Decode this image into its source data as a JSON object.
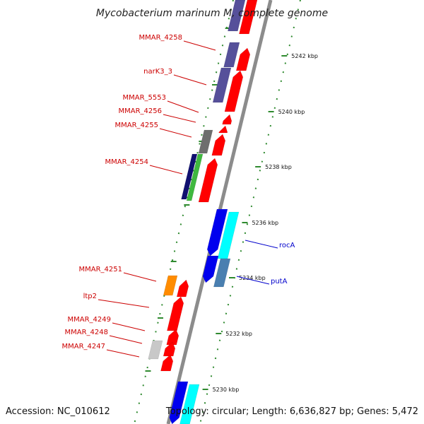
{
  "title": "Mycobacterium marinum M, complete genome",
  "footer": {
    "accession": "Accession: NC_010612",
    "summary": "Topology: circular; Length: 6,636,827 bp; Genes: 5,472"
  },
  "colors": {
    "backbone": "#8c8c8c",
    "tick": "#2f8a2f",
    "label_red": "#cc0000",
    "label_blue": "#0000cc"
  },
  "scale_labels": [
    "5242 kbp",
    "5240 kbp",
    "5238 kbp",
    "5236 kbp",
    "5234 kbp",
    "5232 kbp",
    "5230 kbp"
  ],
  "gene_labels": [
    {
      "text": "MMAR_4258",
      "color": "red"
    },
    {
      "text": "narK3_3",
      "color": "red"
    },
    {
      "text": "MMAR_5553",
      "color": "red"
    },
    {
      "text": "MMAR_4256",
      "color": "red"
    },
    {
      "text": "MMAR_4255",
      "color": "red"
    },
    {
      "text": "MMAR_4254",
      "color": "red"
    },
    {
      "text": "rocA",
      "color": "blue"
    },
    {
      "text": "putA",
      "color": "blue"
    },
    {
      "text": "MMAR_4251",
      "color": "red"
    },
    {
      "text": "ltp2",
      "color": "red"
    },
    {
      "text": "MMAR_4249",
      "color": "red"
    },
    {
      "text": "MMAR_4248",
      "color": "red"
    },
    {
      "text": "MMAR_4247",
      "color": "red"
    }
  ],
  "features": [
    {
      "name": "MMAR_4258-forward",
      "color": "#ff0000"
    },
    {
      "name": "MMAR_4258-cog",
      "color": "#56509a"
    },
    {
      "name": "narK3_3-forward",
      "color": "#ff0000"
    },
    {
      "name": "narK3_3-cog",
      "color": "#56509a"
    },
    {
      "name": "top-cog",
      "color": "#56509a"
    },
    {
      "name": "top-forward",
      "color": "#ff0000"
    },
    {
      "name": "MMAR_5553-forward",
      "color": "#ff0000"
    },
    {
      "name": "MMAR_4256-forward",
      "color": "#ff0000"
    },
    {
      "name": "MMAR_4255-forward",
      "color": "#ff0000"
    },
    {
      "name": "MMAR_4255-cog",
      "color": "#6e6e6e"
    },
    {
      "name": "MMAR_4254-forward",
      "color": "#ff0000"
    },
    {
      "name": "MMAR_4254-cog-green",
      "color": "#3fb83f"
    },
    {
      "name": "MMAR_4254-cog-navy",
      "color": "#101070"
    },
    {
      "name": "rocA-reverse",
      "color": "#0000ee"
    },
    {
      "name": "rocA-cog",
      "color": "#00ffff"
    },
    {
      "name": "putA-reverse",
      "color": "#0000ee"
    },
    {
      "name": "putA-cog",
      "color": "#4a7fb0"
    },
    {
      "name": "MMAR_4251-forward",
      "color": "#ff0000"
    },
    {
      "name": "MMAR_4251-cog",
      "color": "#ff8c00"
    },
    {
      "name": "ltp2-forward",
      "color": "#ff0000"
    },
    {
      "name": "MMAR_4249-forward",
      "color": "#ff0000"
    },
    {
      "name": "MMAR_4248-forward",
      "color": "#ff0000"
    },
    {
      "name": "MMAR_4247-forward",
      "color": "#ff0000"
    },
    {
      "name": "MMAR_4247-cog",
      "color": "#c8c8c8"
    },
    {
      "name": "bottom-reverse",
      "color": "#0000ee"
    },
    {
      "name": "bottom-cog",
      "color": "#00ffff"
    }
  ]
}
